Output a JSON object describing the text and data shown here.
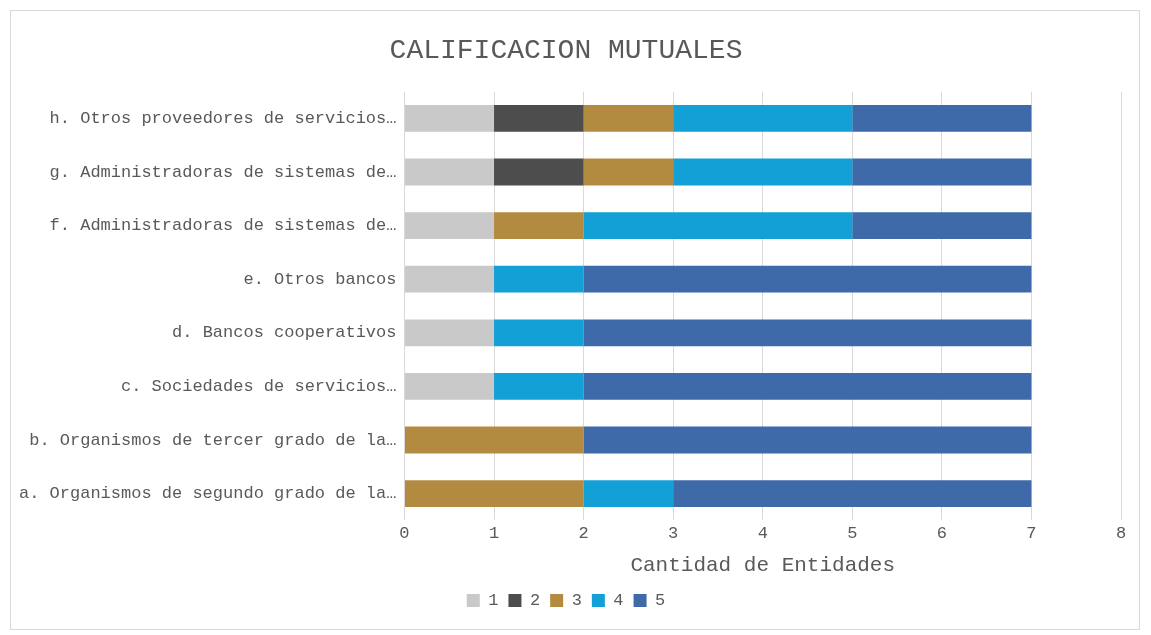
{
  "chart_data": {
    "type": "bar",
    "orientation": "horizontal",
    "stacked": true,
    "title": "CALIFICACION MUTUALES",
    "xlabel": "Cantidad de Entidades",
    "categories": [
      "h. Otros proveedores de servicios…",
      "g. Administradoras de sistemas de…",
      "f. Administradoras de sistemas de…",
      "e. Otros bancos",
      "d. Bancos cooperativos",
      "c. Sociedades de servicios…",
      "b. Organismos de tercer grado de la…",
      "a. Organismos de segundo grado de la…"
    ],
    "series": [
      {
        "name": "1",
        "color": "#c9c9c9",
        "values": [
          1,
          1,
          1,
          1,
          1,
          1,
          0,
          0
        ]
      },
      {
        "name": "2",
        "color": "#4d4d4d",
        "values": [
          1,
          1,
          0,
          0,
          0,
          0,
          0,
          0
        ]
      },
      {
        "name": "3",
        "color": "#b38b40",
        "values": [
          1,
          1,
          1,
          0,
          0,
          0,
          2,
          2
        ]
      },
      {
        "name": "4",
        "color": "#12a0d7",
        "values": [
          2,
          2,
          3,
          1,
          1,
          1,
          0,
          1
        ]
      },
      {
        "name": "5",
        "color": "#3e6aa9",
        "values": [
          2,
          2,
          2,
          5,
          5,
          5,
          5,
          4
        ]
      }
    ],
    "xlim": [
      0,
      8
    ],
    "xticks": [
      0,
      1,
      2,
      3,
      4,
      5,
      6,
      7,
      8
    ],
    "grid": "x",
    "legend": "bottom"
  }
}
